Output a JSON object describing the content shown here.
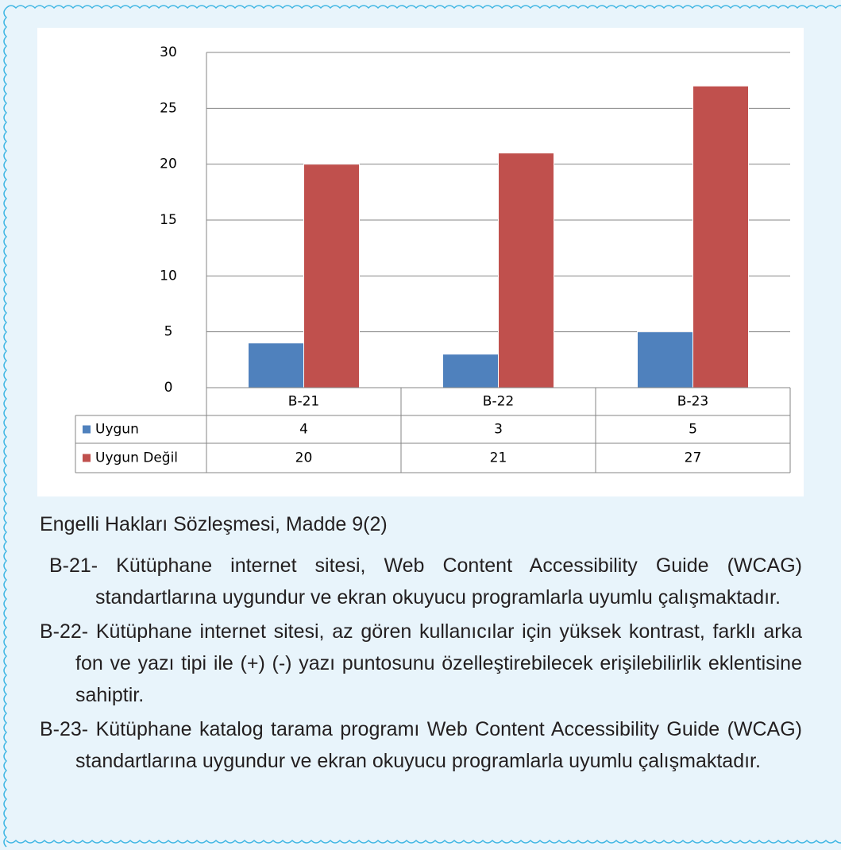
{
  "chart_data": {
    "type": "bar",
    "categories": [
      "B-21",
      "B-22",
      "B-23"
    ],
    "series": [
      {
        "name": "Uygun",
        "color": "#4f81bd",
        "values": [
          4,
          3,
          5
        ]
      },
      {
        "name": "Uygun Değil",
        "color": "#c0504d",
        "values": [
          20,
          21,
          27
        ]
      }
    ],
    "ylim": [
      0,
      30
    ],
    "yticks": [
      0,
      5,
      10,
      15,
      20,
      25,
      30
    ],
    "grid": true
  },
  "caption": "Engelli Hakları Sözleşmesi, Madde 9(2)",
  "items": [
    {
      "label": "B-21-",
      "text": "Kütüphane internet sitesi, Web Content Accessibility Guide (WCAG) standartlarına uygundur ve ekran okuyucu programlarla uyumlu çalışmaktadır."
    },
    {
      "label": "B-22-",
      "text": "Kütüphane internet sitesi, az gören kullanıcılar için yüksek kontrast, farklı arka fon ve yazı tipi ile (+) (-) yazı puntosunu özelleştirebilecek erişilebilirlik eklentisine sahiptir."
    },
    {
      "label": "B-23-",
      "text": "Kütüphane katalog tarama programı Web Content Accessibility Guide (WCAG) standartlarına uygundur ve ekran okuyucu programlarla uyumlu çalışmaktadır."
    }
  ]
}
